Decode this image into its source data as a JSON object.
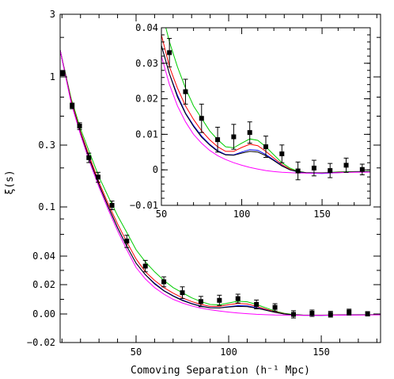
{
  "chart_data": [
    {
      "panel": "main",
      "type": "line",
      "xlabel": "Comoving Separation (h⁻¹ Mpc)",
      "ylabel": "ξ(s)",
      "xlim": [
        9,
        182
      ],
      "y_scale": "compressed (logarithmic above ~0.04, linear near zero)",
      "y_ticks": [
        3,
        1,
        0.3,
        0.1,
        0.04,
        0.02,
        0.0,
        -0.02
      ],
      "y_tick_labels": [
        "3",
        "1",
        "0.3",
        "0.1",
        "0.04",
        "0.02",
        "0.00",
        "−0.02"
      ],
      "x_ticks": [
        50,
        100,
        150
      ],
      "x_tick_labels": [
        "50",
        "100",
        "150"
      ],
      "grid": false,
      "legend": "none",
      "data_points": {
        "x": [
          10.5,
          15.5,
          19.5,
          24.5,
          29.5,
          37,
          45,
          55,
          65,
          75,
          85,
          95,
          105,
          115,
          125,
          135,
          145,
          155,
          165,
          175
        ],
        "y": [
          1.07,
          0.6,
          0.42,
          0.24,
          0.17,
          0.103,
          0.053,
          0.033,
          0.022,
          0.0145,
          0.0085,
          0.0093,
          0.0105,
          0.0065,
          0.0045,
          -0.0003,
          0.0005,
          -0.0002,
          0.0013,
          0.0001
        ],
        "yerr": [
          0.05,
          0.03,
          0.025,
          0.02,
          0.015,
          0.008,
          0.006,
          0.004,
          0.0035,
          0.004,
          0.0035,
          0.0035,
          0.003,
          0.003,
          0.0025,
          0.0025,
          0.0022,
          0.002,
          0.002,
          0.0015
        ]
      },
      "series": [
        {
          "color": "#00cc00",
          "x": [
            9,
            15,
            20,
            25,
            30,
            35,
            40,
            45,
            50,
            55,
            60,
            65,
            70,
            75,
            80,
            85,
            90,
            95,
            100,
            105,
            110,
            115,
            120,
            125,
            130,
            135,
            140,
            150,
            160,
            170,
            182
          ],
          "y": [
            1.6,
            0.68,
            0.4,
            0.26,
            0.17,
            0.12,
            0.085,
            0.062,
            0.045,
            0.036,
            0.029,
            0.023,
            0.018,
            0.0145,
            0.011,
            0.0085,
            0.0065,
            0.0062,
            0.0075,
            0.0087,
            0.0083,
            0.0065,
            0.0042,
            0.002,
            0.0005,
            -0.0004,
            -0.0008,
            -0.0008,
            -0.0006,
            -0.0005,
            -0.0004
          ]
        },
        {
          "color": "#ff0000",
          "x": [
            9,
            15,
            20,
            25,
            30,
            35,
            40,
            45,
            50,
            55,
            60,
            65,
            70,
            75,
            80,
            85,
            90,
            95,
            100,
            105,
            110,
            115,
            120,
            125,
            130,
            135,
            140,
            150,
            160,
            170,
            182
          ],
          "y": [
            1.6,
            0.66,
            0.38,
            0.24,
            0.155,
            0.105,
            0.073,
            0.052,
            0.038,
            0.029,
            0.023,
            0.018,
            0.0142,
            0.011,
            0.0085,
            0.0065,
            0.0052,
            0.0052,
            0.0063,
            0.0072,
            0.0068,
            0.0052,
            0.0033,
            0.0015,
            0.0002,
            -0.0006,
            -0.0009,
            -0.0009,
            -0.0007,
            -0.0006,
            -0.0005
          ]
        },
        {
          "color": "#0000ff",
          "x": [
            9,
            15,
            20,
            25,
            30,
            35,
            40,
            45,
            50,
            55,
            60,
            65,
            70,
            75,
            80,
            85,
            90,
            95,
            100,
            105,
            110,
            115,
            120,
            125,
            130,
            135,
            140,
            150,
            160,
            170,
            182
          ],
          "y": [
            1.6,
            0.64,
            0.37,
            0.23,
            0.148,
            0.1,
            0.068,
            0.048,
            0.035,
            0.027,
            0.021,
            0.016,
            0.0125,
            0.0095,
            0.0072,
            0.0054,
            0.0043,
            0.0042,
            0.005,
            0.0057,
            0.0055,
            0.0043,
            0.0028,
            0.0012,
            0.0,
            -0.0006,
            -0.0009,
            -0.001,
            -0.0008,
            -0.0006,
            -0.0005
          ]
        },
        {
          "color": "#000000",
          "x": [
            9,
            15,
            20,
            25,
            30,
            35,
            40,
            45,
            50,
            55,
            60,
            65,
            70,
            75,
            80,
            85,
            90,
            95,
            100,
            105,
            110,
            115,
            120,
            125,
            130,
            135,
            140,
            150,
            160,
            170,
            182
          ],
          "y": [
            1.6,
            0.64,
            0.37,
            0.23,
            0.148,
            0.1,
            0.068,
            0.048,
            0.035,
            0.027,
            0.0205,
            0.0158,
            0.0122,
            0.0092,
            0.007,
            0.0052,
            0.0042,
            0.0041,
            0.0047,
            0.0052,
            0.005,
            0.004,
            0.0026,
            0.0011,
            0.0,
            -0.0005,
            -0.0008,
            -0.0009,
            -0.0007,
            -0.0006,
            -0.0005
          ]
        },
        {
          "color": "#ff00ff",
          "x": [
            9,
            15,
            20,
            25,
            30,
            35,
            40,
            45,
            50,
            55,
            60,
            65,
            70,
            75,
            80,
            85,
            90,
            95,
            100,
            105,
            110,
            115,
            120,
            125,
            130,
            135,
            140,
            150,
            160,
            170,
            182
          ],
          "y": [
            1.6,
            0.63,
            0.36,
            0.22,
            0.142,
            0.095,
            0.064,
            0.045,
            0.032,
            0.024,
            0.018,
            0.0135,
            0.01,
            0.0075,
            0.0055,
            0.004,
            0.0029,
            0.002,
            0.0013,
            0.0007,
            0.0002,
            -0.0002,
            -0.0005,
            -0.0007,
            -0.0008,
            -0.0009,
            -0.0009,
            -0.0009,
            -0.0008,
            -0.0007,
            -0.0006
          ]
        }
      ]
    },
    {
      "panel": "inset",
      "type": "line",
      "xlabel": "",
      "ylabel": "",
      "xlim": [
        50,
        180
      ],
      "ylim": [
        -0.01,
        0.04
      ],
      "y_ticks": [
        -0.01,
        0,
        0.01,
        0.02,
        0.03,
        0.04
      ],
      "y_tick_labels": [
        "−0.01",
        "0",
        "0.01",
        "0.02",
        "0.03",
        "0.04"
      ],
      "x_ticks": [
        50,
        100,
        150
      ],
      "x_tick_labels": [
        "50",
        "100",
        "150"
      ],
      "grid": false,
      "legend": "none"
    }
  ]
}
